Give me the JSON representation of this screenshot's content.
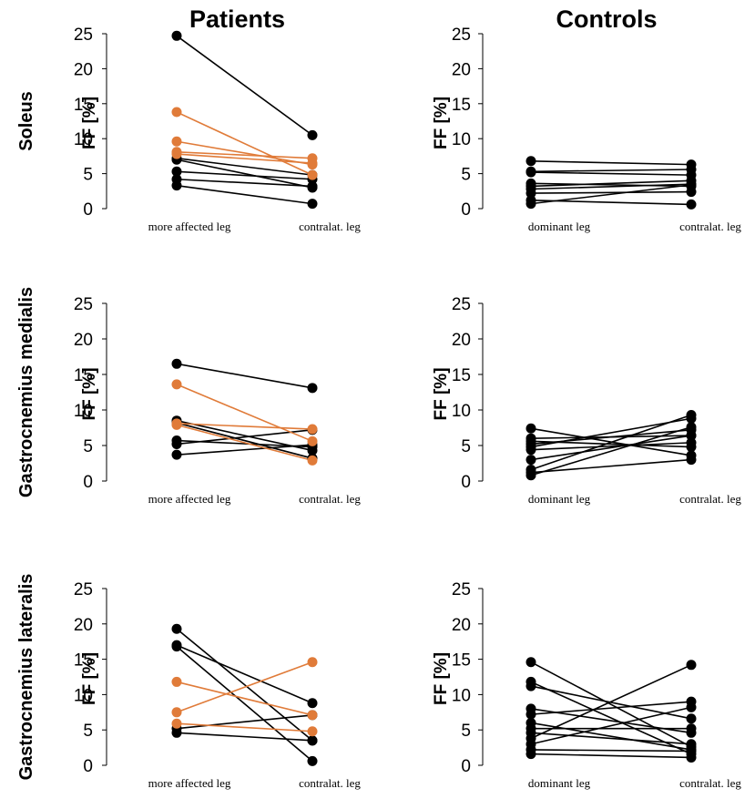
{
  "colors": {
    "black": "#000000",
    "orange": "#E07B39"
  },
  "chart_data": [
    {
      "type": "line",
      "panel": "patients-soleus",
      "title": "Patients",
      "row_label": "Soleus",
      "xlabel": "",
      "ylabel": "FF [%]",
      "ylim": [
        0,
        25
      ],
      "yticks": [
        "0",
        "5",
        "10",
        "15",
        "20",
        "25"
      ],
      "categories": [
        "more affected leg",
        "contralat. leg"
      ],
      "series": [
        {
          "color": "black",
          "values": [
            24.7,
            10.5
          ]
        },
        {
          "color": "black",
          "values": [
            7.2,
            4.8
          ]
        },
        {
          "color": "black",
          "values": [
            7.0,
            3.0
          ]
        },
        {
          "color": "black",
          "values": [
            5.3,
            4.2
          ]
        },
        {
          "color": "black",
          "values": [
            4.2,
            3.2
          ]
        },
        {
          "color": "black",
          "values": [
            3.3,
            0.7
          ]
        },
        {
          "color": "orange",
          "values": [
            13.8,
            4.8
          ]
        },
        {
          "color": "orange",
          "values": [
            9.6,
            6.3
          ]
        },
        {
          "color": "orange",
          "values": [
            8.1,
            7.2
          ]
        },
        {
          "color": "orange",
          "values": [
            7.8,
            6.5
          ]
        }
      ]
    },
    {
      "type": "line",
      "panel": "controls-soleus",
      "title": "Controls",
      "xlabel": "",
      "ylabel": "FF [%]",
      "ylim": [
        0,
        25
      ],
      "yticks": [
        "0",
        "5",
        "10",
        "15",
        "20",
        "25"
      ],
      "categories": [
        "dominant leg",
        "contralat. leg"
      ],
      "series": [
        {
          "color": "black",
          "values": [
            6.8,
            6.3
          ]
        },
        {
          "color": "black",
          "values": [
            5.3,
            5.6
          ]
        },
        {
          "color": "black",
          "values": [
            5.2,
            4.8
          ]
        },
        {
          "color": "black",
          "values": [
            3.6,
            3.2
          ]
        },
        {
          "color": "black",
          "values": [
            3.2,
            4.0
          ]
        },
        {
          "color": "black",
          "values": [
            2.8,
            3.5
          ]
        },
        {
          "color": "black",
          "values": [
            2.2,
            2.4
          ]
        },
        {
          "color": "black",
          "values": [
            1.2,
            0.6
          ]
        },
        {
          "color": "black",
          "values": [
            0.7,
            3.4
          ]
        }
      ]
    },
    {
      "type": "line",
      "panel": "patients-gastrocnemius-medialis",
      "row_label": "Gastrocnemius medialis",
      "xlabel": "",
      "ylabel": "FF [%]",
      "ylim": [
        0,
        25
      ],
      "yticks": [
        "0",
        "5",
        "10",
        "15",
        "20",
        "25"
      ],
      "categories": [
        "more affected leg",
        "contralat. leg"
      ],
      "series": [
        {
          "color": "black",
          "values": [
            16.5,
            13.1
          ]
        },
        {
          "color": "black",
          "values": [
            8.5,
            4.3
          ]
        },
        {
          "color": "black",
          "values": [
            8.2,
            3.2
          ]
        },
        {
          "color": "black",
          "values": [
            5.7,
            4.8
          ]
        },
        {
          "color": "black",
          "values": [
            5.2,
            7.2
          ]
        },
        {
          "color": "black",
          "values": [
            3.7,
            5.1
          ]
        },
        {
          "color": "orange",
          "values": [
            13.6,
            5.6
          ]
        },
        {
          "color": "orange",
          "values": [
            8.1,
            7.3
          ]
        },
        {
          "color": "orange",
          "values": [
            7.9,
            2.9
          ]
        }
      ]
    },
    {
      "type": "line",
      "panel": "controls-gastrocnemius-medialis",
      "xlabel": "",
      "ylabel": "FF [%]",
      "ylim": [
        0,
        25
      ],
      "yticks": [
        "0",
        "5",
        "10",
        "15",
        "20",
        "25"
      ],
      "categories": [
        "dominant leg",
        "contralat. leg"
      ],
      "series": [
        {
          "color": "black",
          "values": [
            7.4,
            3.6
          ]
        },
        {
          "color": "black",
          "values": [
            6.0,
            6.4
          ]
        },
        {
          "color": "black",
          "values": [
            5.6,
            4.8
          ]
        },
        {
          "color": "black",
          "values": [
            5.2,
            7.2
          ]
        },
        {
          "color": "black",
          "values": [
            4.8,
            8.8
          ]
        },
        {
          "color": "black",
          "values": [
            4.4,
            5.4
          ]
        },
        {
          "color": "black",
          "values": [
            3.0,
            6.4
          ]
        },
        {
          "color": "black",
          "values": [
            1.6,
            9.3
          ]
        },
        {
          "color": "black",
          "values": [
            1.2,
            3.0
          ]
        },
        {
          "color": "black",
          "values": [
            0.8,
            7.6
          ]
        }
      ]
    },
    {
      "type": "line",
      "panel": "patients-gastrocnemius-lateralis",
      "row_label": "Gastrocnemius lateralis",
      "xlabel": "",
      "ylabel": "FF [%]",
      "ylim": [
        0,
        25
      ],
      "yticks": [
        "0",
        "5",
        "10",
        "15",
        "20",
        "25"
      ],
      "categories": [
        "more affected leg",
        "contralat. leg"
      ],
      "series": [
        {
          "color": "black",
          "values": [
            19.3,
            3.5
          ]
        },
        {
          "color": "black",
          "values": [
            17.0,
            8.8
          ]
        },
        {
          "color": "black",
          "values": [
            16.8,
            0.6
          ]
        },
        {
          "color": "black",
          "values": [
            5.2,
            7.1
          ]
        },
        {
          "color": "black",
          "values": [
            4.6,
            3.5
          ]
        },
        {
          "color": "orange",
          "values": [
            11.8,
            7.1
          ]
        },
        {
          "color": "orange",
          "values": [
            7.5,
            14.6
          ]
        },
        {
          "color": "orange",
          "values": [
            5.9,
            4.8
          ]
        }
      ]
    },
    {
      "type": "line",
      "panel": "controls-gastrocnemius-lateralis",
      "xlabel": "",
      "ylabel": "FF [%]",
      "ylim": [
        0,
        25
      ],
      "yticks": [
        "0",
        "5",
        "10",
        "15",
        "20",
        "25"
      ],
      "categories": [
        "dominant leg",
        "contralat. leg"
      ],
      "series": [
        {
          "color": "black",
          "values": [
            14.6,
            2.6
          ]
        },
        {
          "color": "black",
          "values": [
            11.8,
            1.6
          ]
        },
        {
          "color": "black",
          "values": [
            11.2,
            6.6
          ]
        },
        {
          "color": "black",
          "values": [
            8.0,
            4.6
          ]
        },
        {
          "color": "black",
          "values": [
            7.2,
            9.0
          ]
        },
        {
          "color": "black",
          "values": [
            6.0,
            2.2
          ]
        },
        {
          "color": "black",
          "values": [
            5.2,
            5.2
          ]
        },
        {
          "color": "black",
          "values": [
            4.6,
            3.0
          ]
        },
        {
          "color": "black",
          "values": [
            3.8,
            14.2
          ]
        },
        {
          "color": "black",
          "values": [
            3.0,
            8.2
          ]
        },
        {
          "color": "black",
          "values": [
            2.2,
            2.0
          ]
        },
        {
          "color": "black",
          "values": [
            1.6,
            1.1
          ]
        }
      ]
    }
  ]
}
